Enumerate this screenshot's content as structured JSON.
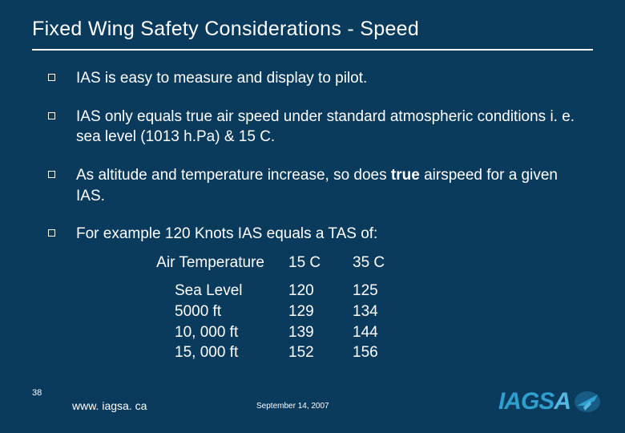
{
  "title": "Fixed Wing Safety Considerations - Speed",
  "bullets": [
    {
      "text": "IAS is easy to measure and display to pilot."
    },
    {
      "text": "IAS only equals true air speed under standard atmospheric conditions i. e. sea level (1013 h.Pa) & 15 C."
    },
    {
      "html": "As altitude and temperature increase, so does <b>true</b> airspeed for a given IAS."
    },
    {
      "text": "For example  120 Knots IAS equals a TAS of:"
    }
  ],
  "table": {
    "header_label": "Air Temperature",
    "col_a": "15 C",
    "col_b": "35 C",
    "rows": [
      {
        "label": "Sea Level",
        "a": "120",
        "b": "125"
      },
      {
        "label": "5000 ft",
        "a": "129",
        "b": "134"
      },
      {
        "label": "10, 000 ft",
        "a": "139",
        "b": "144"
      },
      {
        "label": "15, 000 ft",
        "a": "152",
        "b": "156"
      }
    ]
  },
  "footer": {
    "page": "38",
    "url": "www. iagsa. ca",
    "date": "September 14, 2007",
    "logo_text1": "IAGS",
    "logo_text2": "A"
  },
  "style": {
    "background": "#0a3a5c",
    "text_color": "#ffffff",
    "rule_color": "#ffffff",
    "bullet_border": "#ffffff",
    "logo_color1": "#2f9fd0",
    "logo_color2": "#56b8e0",
    "title_fontsize": 25,
    "body_fontsize": 19,
    "footer_fontsize_small": 10,
    "footer_fontsize_url": 14
  }
}
